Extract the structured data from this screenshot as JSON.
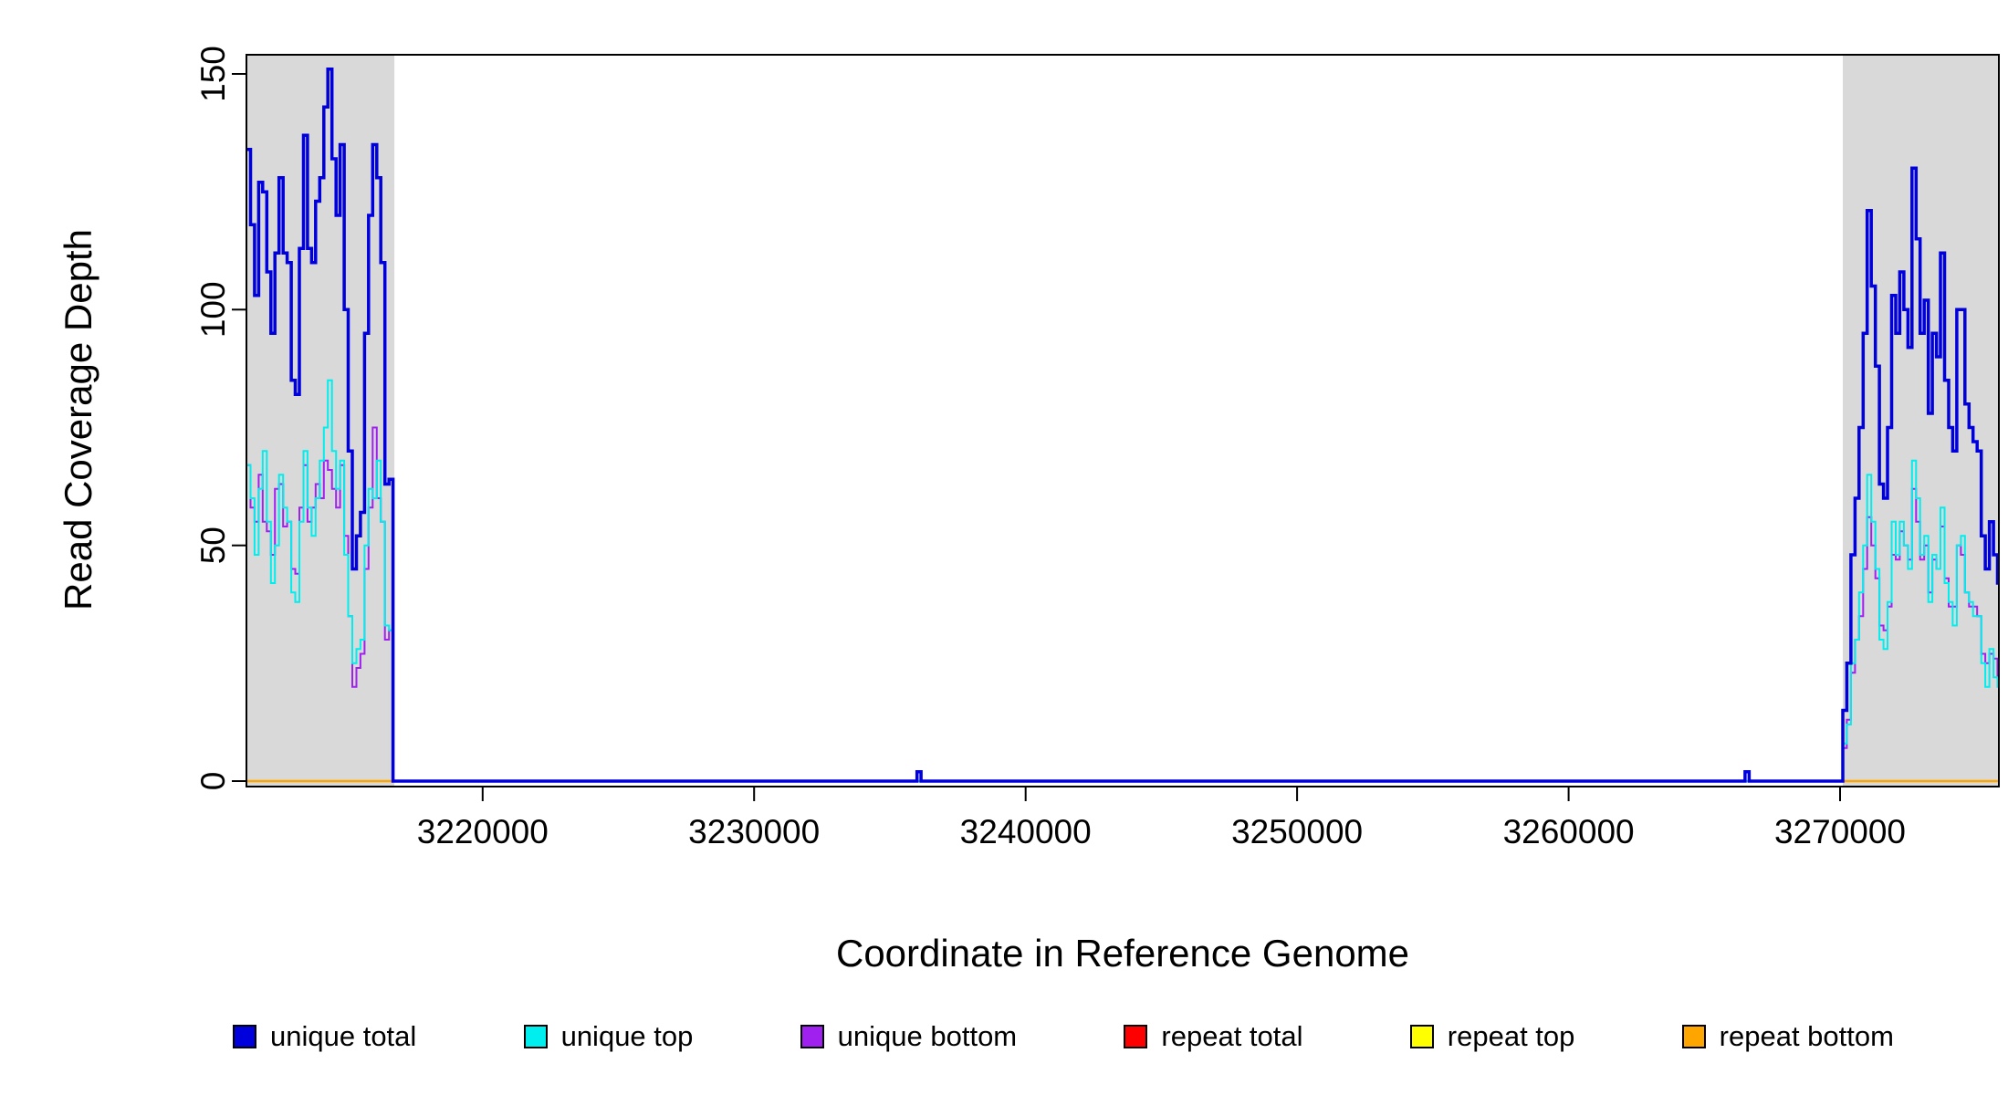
{
  "chart_data": {
    "type": "line",
    "step": "after",
    "title": "",
    "xlabel": "Coordinate in Reference Genome",
    "ylabel": "Read Coverage Depth",
    "xlim": [
      3211300,
      3275850
    ],
    "ylim": [
      0,
      155
    ],
    "xticks": [
      3220000,
      3230000,
      3240000,
      3250000,
      3260000,
      3270000
    ],
    "xtick_labels": [
      "3220000",
      "3230000",
      "3240000",
      "3250000",
      "3260000",
      "3270000"
    ],
    "yticks": [
      0,
      50,
      100,
      150
    ],
    "ytick_labels": [
      "0",
      "50",
      "100",
      "150"
    ],
    "grid": false,
    "legend_position": "bottom",
    "colors": {
      "background": "#FFFFFF",
      "shaded": "#D9D9D9",
      "axis": "#000000"
    },
    "shaded_regions": [
      [
        3211300,
        3216750
      ],
      [
        3270100,
        3275850
      ]
    ],
    "legend": [
      {
        "label": "unique total",
        "color": "#0000DD"
      },
      {
        "label": "unique top",
        "color": "#00EEEE"
      },
      {
        "label": "unique bottom",
        "color": "#A020F0"
      },
      {
        "label": "repeat total",
        "color": "#FF0000"
      },
      {
        "label": "repeat top",
        "color": "#FFFF00"
      },
      {
        "label": "repeat bottom",
        "color": "#FFA500"
      }
    ],
    "series": [
      {
        "name": "repeat total",
        "color": "#FF0000",
        "lwd": 2,
        "x": [
          3211300,
          3275850
        ],
        "y": [
          0,
          0
        ]
      },
      {
        "name": "repeat top",
        "color": "#FFFF00",
        "lwd": 2,
        "x": [
          3211300,
          3275850
        ],
        "y": [
          0,
          0
        ]
      },
      {
        "name": "repeat bottom",
        "color": "#FFA500",
        "lwd": 2.5,
        "x": [
          3211300,
          3275850
        ],
        "y": [
          0,
          0
        ]
      },
      {
        "name": "unique bottom",
        "color": "#A020F0",
        "lwd": 2,
        "x": [
          3211300,
          3211450,
          3211600,
          3211750,
          3211900,
          3212050,
          3212200,
          3212350,
          3212500,
          3212650,
          3212800,
          3212950,
          3213100,
          3213250,
          3213400,
          3213550,
          3213700,
          3213850,
          3214000,
          3214150,
          3214300,
          3214450,
          3214600,
          3214750,
          3214900,
          3215050,
          3215200,
          3215350,
          3215500,
          3215650,
          3215800,
          3215950,
          3216100,
          3216250,
          3216400,
          3216550,
          3216700,
          3270100,
          3270250,
          3270400,
          3270550,
          3270700,
          3270850,
          3271000,
          3271150,
          3271300,
          3271450,
          3271600,
          3271750,
          3271900,
          3272050,
          3272200,
          3272350,
          3272500,
          3272650,
          3272800,
          3272950,
          3273100,
          3273250,
          3273400,
          3273550,
          3273700,
          3273850,
          3274000,
          3274150,
          3274300,
          3274450,
          3274600,
          3274750,
          3274900,
          3275050,
          3275200,
          3275350,
          3275500,
          3275650,
          3275800
        ],
        "y": [
          67,
          58,
          55,
          65,
          55,
          53,
          48,
          62,
          63,
          54,
          55,
          45,
          44,
          58,
          67,
          55,
          58,
          63,
          60,
          68,
          66,
          62,
          58,
          67,
          52,
          35,
          20,
          24,
          27,
          45,
          58,
          75,
          60,
          55,
          30,
          32,
          0,
          7,
          13,
          23,
          30,
          35,
          45,
          56,
          50,
          43,
          33,
          32,
          37,
          48,
          47,
          53,
          50,
          47,
          62,
          55,
          47,
          50,
          40,
          47,
          45,
          54,
          43,
          37,
          37,
          50,
          48,
          40,
          37,
          37,
          35,
          27,
          25,
          27,
          26,
          22
        ]
      },
      {
        "name": "unique top",
        "color": "#00EEEE",
        "lwd": 2,
        "x": [
          3211300,
          3211450,
          3211600,
          3211750,
          3211900,
          3212050,
          3212200,
          3212350,
          3212500,
          3212650,
          3212800,
          3212950,
          3213100,
          3213250,
          3213400,
          3213550,
          3213700,
          3213850,
          3214000,
          3214150,
          3214300,
          3214450,
          3214600,
          3214750,
          3214900,
          3215050,
          3215200,
          3215350,
          3215500,
          3215650,
          3215800,
          3215950,
          3216100,
          3216250,
          3216400,
          3216550,
          3216700,
          3270100,
          3270250,
          3270400,
          3270550,
          3270700,
          3270850,
          3271000,
          3271150,
          3271300,
          3271450,
          3271600,
          3271750,
          3271900,
          3272050,
          3272200,
          3272350,
          3272500,
          3272650,
          3272800,
          3272950,
          3273100,
          3273250,
          3273400,
          3273550,
          3273700,
          3273850,
          3274000,
          3274150,
          3274300,
          3274450,
          3274600,
          3274750,
          3274900,
          3275050,
          3275200,
          3275350,
          3275500,
          3275650,
          3275800
        ],
        "y": [
          67,
          60,
          48,
          62,
          70,
          55,
          42,
          50,
          65,
          58,
          55,
          40,
          38,
          55,
          70,
          58,
          52,
          60,
          68,
          75,
          85,
          70,
          62,
          68,
          48,
          35,
          25,
          28,
          30,
          50,
          62,
          60,
          68,
          55,
          33,
          32,
          0,
          8,
          12,
          25,
          30,
          40,
          50,
          65,
          55,
          45,
          30,
          28,
          38,
          55,
          48,
          55,
          50,
          45,
          68,
          60,
          48,
          52,
          38,
          48,
          45,
          58,
          42,
          38,
          33,
          50,
          52,
          40,
          38,
          35,
          35,
          25,
          20,
          28,
          22,
          20
        ]
      },
      {
        "name": "unique total",
        "color": "#0000DD",
        "lwd": 3.5,
        "x": [
          3211300,
          3211450,
          3211600,
          3211750,
          3211900,
          3212050,
          3212200,
          3212350,
          3212500,
          3212650,
          3212800,
          3212950,
          3213100,
          3213250,
          3213400,
          3213550,
          3213700,
          3213850,
          3214000,
          3214150,
          3214300,
          3214450,
          3214600,
          3214750,
          3214900,
          3215050,
          3215200,
          3215350,
          3215500,
          3215650,
          3215800,
          3215950,
          3216100,
          3216250,
          3216400,
          3216550,
          3216700,
          3236000,
          3236150,
          3266500,
          3266650,
          3270100,
          3270250,
          3270400,
          3270550,
          3270700,
          3270850,
          3271000,
          3271150,
          3271300,
          3271450,
          3271600,
          3271750,
          3271900,
          3272050,
          3272200,
          3272350,
          3272500,
          3272650,
          3272800,
          3272950,
          3273100,
          3273250,
          3273400,
          3273550,
          3273700,
          3273850,
          3274000,
          3274150,
          3274300,
          3274450,
          3274600,
          3274750,
          3274900,
          3275050,
          3275200,
          3275350,
          3275500,
          3275650,
          3275800
        ],
        "y": [
          134,
          118,
          103,
          127,
          125,
          108,
          95,
          112,
          128,
          112,
          110,
          85,
          82,
          113,
          137,
          113,
          110,
          123,
          128,
          143,
          151,
          132,
          120,
          135,
          100,
          70,
          45,
          52,
          57,
          95,
          120,
          135,
          128,
          110,
          63,
          64,
          0,
          2,
          0,
          2,
          0,
          15,
          25,
          48,
          60,
          75,
          95,
          121,
          105,
          88,
          63,
          60,
          75,
          103,
          95,
          108,
          100,
          92,
          130,
          115,
          95,
          102,
          78,
          95,
          90,
          112,
          85,
          75,
          70,
          100,
          100,
          80,
          75,
          72,
          70,
          52,
          45,
          55,
          48,
          42
        ]
      }
    ]
  }
}
